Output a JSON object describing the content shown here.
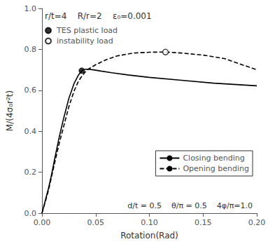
{
  "chart_data": {
    "type": "line",
    "xlabel": "Rotation(Rad)",
    "ylabel": "M/(4σ₀r²t)",
    "annotations": [
      "r/t=4    R/r=2    ε₀=0.001",
      "d/t = 0.5    θ/π = 0.5    4φ/π=1.0"
    ],
    "xlim": [
      0.0,
      0.2
    ],
    "ylim": [
      0.0,
      1.0
    ],
    "xticks": [
      {
        "value": 0.0,
        "label": "0.00"
      },
      {
        "value": 0.05,
        "label": "0.05"
      },
      {
        "value": 0.1,
        "label": "0.10"
      },
      {
        "value": 0.15,
        "label": "0.15"
      },
      {
        "value": 0.2,
        "label": "0.20"
      }
    ],
    "yticks": [
      {
        "value": 0.0,
        "label": "0.0"
      },
      {
        "value": 0.2,
        "label": "0.2"
      },
      {
        "value": 0.4,
        "label": "0.4"
      },
      {
        "value": 0.6,
        "label": "0.6"
      },
      {
        "value": 0.8,
        "label": "0.8"
      },
      {
        "value": 1.0,
        "label": "1.0"
      }
    ],
    "legend": "lower right",
    "series": [
      {
        "name": "Closing bending",
        "type": "line",
        "line_style": "solid",
        "color": "black",
        "x": [
          0.0,
          0.003,
          0.006,
          0.009,
          0.012,
          0.016,
          0.02,
          0.025,
          0.03,
          0.034,
          0.037,
          0.04,
          0.043,
          0.048,
          0.055,
          0.065,
          0.08,
          0.1,
          0.13,
          0.16,
          0.2
        ],
        "values": [
          0.0,
          0.06,
          0.12,
          0.19,
          0.27,
          0.37,
          0.46,
          0.56,
          0.635,
          0.675,
          0.696,
          0.703,
          0.703,
          0.7,
          0.694,
          0.686,
          0.675,
          0.663,
          0.649,
          0.635,
          0.622
        ]
      },
      {
        "name": "Opening bending",
        "type": "line",
        "line_style": "dashed",
        "color": "black",
        "x": [
          0.0,
          0.003,
          0.006,
          0.009,
          0.012,
          0.016,
          0.02,
          0.025,
          0.03,
          0.034,
          0.037,
          0.04,
          0.043,
          0.05,
          0.06,
          0.07,
          0.085,
          0.1,
          0.115,
          0.13,
          0.15,
          0.17,
          0.2
        ],
        "values": [
          0.0,
          0.055,
          0.11,
          0.18,
          0.25,
          0.34,
          0.42,
          0.52,
          0.598,
          0.645,
          0.668,
          0.688,
          0.703,
          0.725,
          0.75,
          0.768,
          0.782,
          0.786,
          0.787,
          0.782,
          0.772,
          0.755,
          0.7
        ]
      },
      {
        "name": "TES plastic load",
        "type": "scatter",
        "marker": "circle",
        "color": "black",
        "x": [
          0.037
        ],
        "values": [
          0.696
        ]
      },
      {
        "name": "instability load",
        "type": "scatter",
        "marker": "open circle",
        "color": "black",
        "x": [
          0.115
        ],
        "values": [
          0.787
        ]
      }
    ]
  }
}
